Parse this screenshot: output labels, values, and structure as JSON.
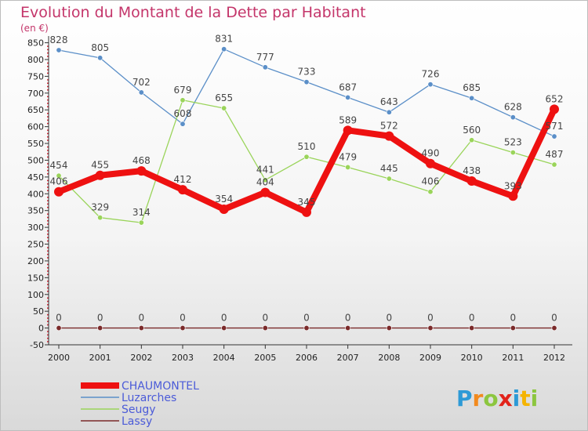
{
  "chart_data": {
    "type": "line",
    "title": "Evolution du Montant de la Dette par Habitant",
    "subtitle": "(en €)",
    "x": [
      "2000",
      "2001",
      "2002",
      "2003",
      "2004",
      "2005",
      "2006",
      "2007",
      "2008",
      "2009",
      "2010",
      "2011",
      "2012"
    ],
    "yticks": [
      -50,
      0,
      50,
      100,
      150,
      200,
      250,
      300,
      350,
      400,
      450,
      500,
      550,
      600,
      650,
      700,
      750,
      800,
      850
    ],
    "ylim": [
      -50,
      870
    ],
    "grid": false,
    "legend_position": "bottom-left",
    "series": [
      {
        "name": "Luzarches",
        "color": "#5b8fc8",
        "values": [
          828,
          805,
          702,
          608,
          831,
          777,
          733,
          687,
          643,
          726,
          685,
          628,
          571
        ]
      },
      {
        "name": "Seugy",
        "color": "#9ad45a",
        "values": [
          454,
          329,
          314,
          679,
          655,
          441,
          510,
          479,
          445,
          406,
          560,
          523,
          487
        ]
      },
      {
        "name": "Lassy",
        "color": "#7a2a2a",
        "values": [
          0,
          0,
          0,
          0,
          0,
          0,
          0,
          0,
          0,
          0,
          0,
          0,
          0
        ]
      },
      {
        "name": "CHAUMONTEL",
        "color": "#ee1111",
        "values": [
          406,
          455,
          468,
          412,
          354,
          404,
          345,
          589,
          572,
          490,
          438,
          393,
          652
        ]
      }
    ]
  },
  "legend": [
    {
      "name": "CHAUMONTEL",
      "color": "#ee1111"
    },
    {
      "name": "Luzarches",
      "color": "#5b8fc8"
    },
    {
      "name": "Seugy",
      "color": "#9ad45a"
    },
    {
      "name": "Lassy",
      "color": "#7a2a2a"
    }
  ],
  "logo": {
    "text": "Proxiti"
  },
  "colors": {
    "title": "#c4356a",
    "axis": "#333333",
    "background_top": "#ffffff",
    "background_bottom": "#dcdcdc"
  }
}
